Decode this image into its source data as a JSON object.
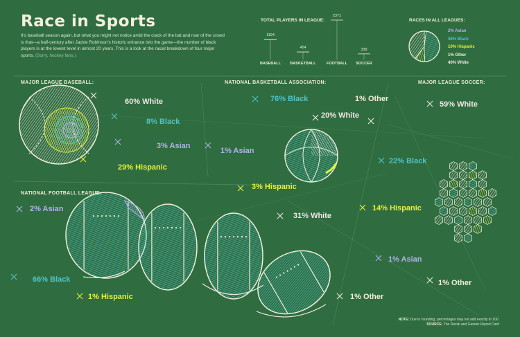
{
  "header": {
    "title": "Race in Sports",
    "intro": "It's baseball season again, but what you might not notice amid the crack of the bat and roar of the crowd is that—a half-century after Jackie Robinson's historic entrance into the game—the number of black players is at the lowest level in almost 20 years. This is a look at the racial breakdown of four major sports.",
    "intro_aside": "(Sorry, hockey fans.)"
  },
  "colors": {
    "background": "#2f6d40",
    "white": "#f2e6e6",
    "black": "#4fc3c9",
    "asian": "#b3b0f0",
    "hispanic": "#e6f23c",
    "other": "#f0eed8"
  },
  "chart_data": [
    {
      "type": "bar",
      "title": "TOTAL PLAYERS IN LEAGUE:",
      "categories": [
        "BASEBALL",
        "BASKETBALL",
        "FOOTBALL",
        "SOCCER"
      ],
      "values": [
        1194,
        454,
        2371,
        339
      ],
      "value_labels": [
        "1194",
        "454",
        "2371",
        "339"
      ]
    },
    {
      "type": "pie",
      "title": "RACES IN ALL LEAGUES:",
      "labels": [
        "Asian",
        "Black",
        "Hispanic",
        "Other",
        "White"
      ],
      "values": [
        2,
        48,
        10,
        1,
        40
      ],
      "legend": [
        "2% Asian",
        "48% Black",
        "10% Hispanic",
        "1% Other",
        "40% White"
      ]
    },
    {
      "type": "pie",
      "title": "MAJOR LEAGUE BASEBALL:",
      "labels": [
        "White",
        "Black",
        "Asian",
        "Hispanic"
      ],
      "values": [
        60,
        8,
        3,
        29
      ],
      "display": [
        "60% White",
        "8% Black",
        "3% Asian",
        "29% Hispanic"
      ]
    },
    {
      "type": "pie",
      "title": "NATIONAL BASKETBALL ASSOCIATION:",
      "labels": [
        "Black",
        "White",
        "Other",
        "Asian",
        "Hispanic"
      ],
      "values": [
        76,
        20,
        1,
        1,
        3
      ],
      "display": [
        "76% Black",
        "20% White",
        "1% Other",
        "1% Asian",
        "3% Hispanic"
      ]
    },
    {
      "type": "pie",
      "title": "MAJOR LEAGUE SOCCER:",
      "labels": [
        "White",
        "Black",
        "Hispanic",
        "Asian",
        "Other"
      ],
      "values": [
        59,
        22,
        14,
        1,
        1
      ],
      "display": [
        "59% White",
        "22% Black",
        "14% Hispanic",
        "1% Asian",
        "1% Other"
      ]
    },
    {
      "type": "pie",
      "title": "NATIONAL FOOTBALL LEAGUE:",
      "labels": [
        "Asian",
        "Black",
        "Hispanic",
        "White",
        "Other"
      ],
      "values": [
        2,
        66,
        1,
        31,
        1
      ],
      "display": [
        "2% Asian",
        "66% Black",
        "1% Hispanic",
        "31% White",
        "1% Other"
      ]
    }
  ],
  "footer": {
    "note_label": "NOTE:",
    "note_text": "Due to rounding, percentages may not add exactly to 100.",
    "source_label": "SOURCE:",
    "source_text": "The Racial and Gender Report Card"
  }
}
